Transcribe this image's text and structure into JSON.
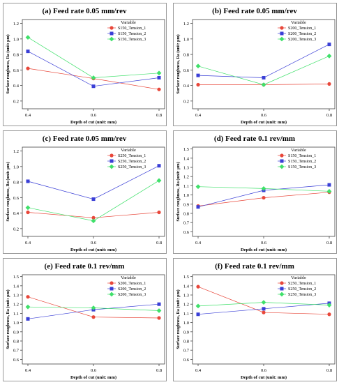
{
  "figure": {
    "background": "#ffffff",
    "frame_color": "#9a9a9a"
  },
  "chart_data": [
    {
      "type": "line",
      "title": "(a) Feed rate 0.05 mm/rev",
      "xlabel": "Depth of cut (unit: mm)",
      "ylabel": "Surface roughness, Ra (unit: μm)",
      "x": [
        0.4,
        0.6,
        0.8
      ],
      "x_ticks": [
        "0.4",
        "0.6",
        "0.8"
      ],
      "ylim": [
        0.1,
        1.25
      ],
      "y_ticks": [
        "0.2",
        "0.4",
        "0.6",
        "0.8",
        "1.0",
        "1.2"
      ],
      "grid": false,
      "legend_title": "Variable",
      "legend_position": "top-right",
      "series": [
        {
          "name": "S150_Tension_1",
          "color": "#e8473a",
          "marker": "circle",
          "values": [
            0.62,
            0.49,
            0.35
          ]
        },
        {
          "name": "S150_Tension_2",
          "color": "#3a3fd6",
          "marker": "square",
          "values": [
            0.84,
            0.39,
            0.5
          ]
        },
        {
          "name": "S150_Tension_3",
          "color": "#3fe06a",
          "marker": "diamond",
          "values": [
            1.02,
            0.5,
            0.56
          ]
        }
      ]
    },
    {
      "type": "line",
      "title": "(b) Feed rate 0.05 mm/rev",
      "xlabel": "Depth of cut (unit: mm)",
      "ylabel": "Surface roughness, Ra (unit: μm)",
      "x": [
        0.4,
        0.6,
        0.8
      ],
      "x_ticks": [
        "0.4",
        "0.6",
        "0.8"
      ],
      "ylim": [
        0.1,
        1.25
      ],
      "y_ticks": [
        "0.2",
        "0.4",
        "0.6",
        "0.8",
        "1.0",
        "1.2"
      ],
      "grid": false,
      "legend_title": "Variable",
      "legend_position": "top-right",
      "series": [
        {
          "name": "S200_Tension_1",
          "color": "#e8473a",
          "marker": "circle",
          "values": [
            0.41,
            0.41,
            0.42
          ]
        },
        {
          "name": "S200_Tension_2",
          "color": "#3a3fd6",
          "marker": "square",
          "values": [
            0.53,
            0.5,
            0.93
          ]
        },
        {
          "name": "S200_Tension_3",
          "color": "#3fe06a",
          "marker": "diamond",
          "values": [
            0.65,
            0.41,
            0.78
          ]
        }
      ]
    },
    {
      "type": "line",
      "title": "(c) Feed rate 0.05 mm/rev",
      "xlabel": "Depth of cut (unit: mm)",
      "ylabel": "Surface roughness, Ra (unit: μm)",
      "x": [
        0.4,
        0.6,
        0.8
      ],
      "x_ticks": [
        "0.4",
        "0.6",
        "0.8"
      ],
      "ylim": [
        0.1,
        1.25
      ],
      "y_ticks": [
        "0.2",
        "0.4",
        "0.6",
        "0.8",
        "1.0",
        "1.2"
      ],
      "grid": false,
      "legend_title": "Variable",
      "legend_position": "top-right",
      "series": [
        {
          "name": "S250_Tension_1",
          "color": "#e8473a",
          "marker": "circle",
          "values": [
            0.41,
            0.34,
            0.41
          ]
        },
        {
          "name": "S250_Tension_2",
          "color": "#3a3fd6",
          "marker": "square",
          "values": [
            0.81,
            0.58,
            1.01
          ]
        },
        {
          "name": "S250_Tension_3",
          "color": "#3fe06a",
          "marker": "diamond",
          "values": [
            0.47,
            0.3,
            0.82
          ]
        }
      ]
    },
    {
      "type": "line",
      "title": "(d) Feed rate 0.1 rev/mm",
      "xlabel": "Depth of cut (unit: mm)",
      "ylabel": "Surface roughness, Ra (unit: μm)",
      "x": [
        0.4,
        0.6,
        0.8
      ],
      "x_ticks": [
        "0.4",
        "0.6",
        "0.8"
      ],
      "ylim": [
        0.55,
        1.52
      ],
      "y_ticks": [
        "0.6",
        "0.7",
        "0.8",
        "0.9",
        "1.0",
        "1.1",
        "1.2",
        "1.3",
        "1.4",
        "1.5"
      ],
      "grid": false,
      "legend_title": "Variable",
      "legend_position": "top-right",
      "series": [
        {
          "name": "S150_Tension_1",
          "color": "#e8473a",
          "marker": "circle",
          "values": [
            0.88,
            0.97,
            1.03
          ]
        },
        {
          "name": "S150_Tension_2",
          "color": "#3a3fd6",
          "marker": "square",
          "values": [
            0.87,
            1.05,
            1.11
          ]
        },
        {
          "name": "S150_Tension_3",
          "color": "#3fe06a",
          "marker": "diamond",
          "values": [
            1.09,
            1.07,
            1.04
          ]
        }
      ]
    },
    {
      "type": "line",
      "title": "(e) Feed rate 0.1 rev/mm",
      "xlabel": "Depth of cut (unit: mm)",
      "ylabel": "Surface roughness, Ra (unit: μm)",
      "x": [
        0.4,
        0.6,
        0.8
      ],
      "x_ticks": [
        "0.4",
        "0.6",
        "0.8"
      ],
      "ylim": [
        0.55,
        1.52
      ],
      "y_ticks": [
        "0.6",
        "0.7",
        "0.8",
        "0.9",
        "1.0",
        "1.1",
        "1.2",
        "1.3",
        "1.4",
        "1.5"
      ],
      "grid": false,
      "legend_title": "Variable",
      "legend_position": "top-right",
      "series": [
        {
          "name": "S200_Tension_1",
          "color": "#e8473a",
          "marker": "circle",
          "values": [
            1.28,
            1.06,
            1.05
          ]
        },
        {
          "name": "S200_Tension_2",
          "color": "#3a3fd6",
          "marker": "square",
          "values": [
            1.04,
            1.14,
            1.2
          ]
        },
        {
          "name": "S200_Tension_3",
          "color": "#3fe06a",
          "marker": "diamond",
          "values": [
            1.17,
            1.16,
            1.13
          ]
        }
      ]
    },
    {
      "type": "line",
      "title": "(f) Feed rate 0.1 rev/mm",
      "xlabel": "Depth of cut (unit: mm)",
      "ylabel": "Surface roughness, Ra (unit: μm)",
      "x": [
        0.4,
        0.6,
        0.8
      ],
      "x_ticks": [
        "0.4",
        "0.6",
        "0.8"
      ],
      "ylim": [
        0.55,
        1.52
      ],
      "y_ticks": [
        "0.6",
        "0.7",
        "0.8",
        "0.9",
        "1.0",
        "1.1",
        "1.2",
        "1.3",
        "1.4",
        "1.5"
      ],
      "grid": false,
      "legend_title": "Variable",
      "legend_position": "top-right",
      "series": [
        {
          "name": "S250_Tension_1",
          "color": "#e8473a",
          "marker": "circle",
          "values": [
            1.39,
            1.11,
            1.09
          ]
        },
        {
          "name": "S250_Tension_2",
          "color": "#3a3fd6",
          "marker": "square",
          "values": [
            1.09,
            1.15,
            1.21
          ]
        },
        {
          "name": "S250_Tension_3",
          "color": "#3fe06a",
          "marker": "diamond",
          "values": [
            1.18,
            1.22,
            1.19
          ]
        }
      ]
    }
  ]
}
